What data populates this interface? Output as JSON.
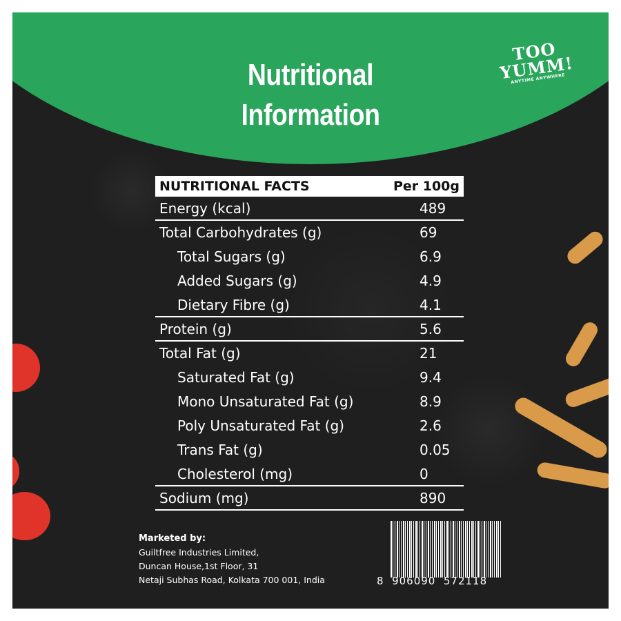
{
  "header": {
    "title_line1": "Nutritional",
    "title_line2": "Information"
  },
  "logo": {
    "line1": "TOO",
    "line2": "YUMM!",
    "tagline": "ANYTIME ANYWHERE"
  },
  "table": {
    "header_name": "NUTRITIONAL FACTS",
    "header_value": "Per 100g",
    "rows": [
      {
        "name": "Energy (kcal)",
        "value": "489"
      },
      {
        "name": "Total Carbohydrates (g)",
        "value": "69"
      },
      {
        "name": "Total Sugars (g)",
        "value": "6.9"
      },
      {
        "name": "Added Sugars (g)",
        "value": "4.9"
      },
      {
        "name": "Dietary Fibre (g)",
        "value": "4.1"
      },
      {
        "name": "Protein (g)",
        "value": "5.6"
      },
      {
        "name": "Total Fat (g)",
        "value": "21"
      },
      {
        "name": "Saturated Fat (g)",
        "value": "9.4"
      },
      {
        "name": "Mono Unsaturated Fat (g)",
        "value": "8.9"
      },
      {
        "name": "Poly Unsaturated Fat (g)",
        "value": "2.6"
      },
      {
        "name": "Trans Fat (g)",
        "value": "0.05"
      },
      {
        "name": "Cholesterol (mg)",
        "value": "0"
      },
      {
        "name": "Sodium (mg)",
        "value": "890"
      }
    ]
  },
  "marketer": {
    "label": "Marketed by:",
    "line1": "Guiltfree Industries Limited,",
    "line2": "Duncan House,1st Floor, 31",
    "line3": "Netaji Subhas Road, Kolkata 700 001, India"
  },
  "barcode": {
    "number": "8  906090  572118"
  },
  "colors": {
    "header_green": "#2aa55c",
    "background": "#1f1f1f"
  }
}
